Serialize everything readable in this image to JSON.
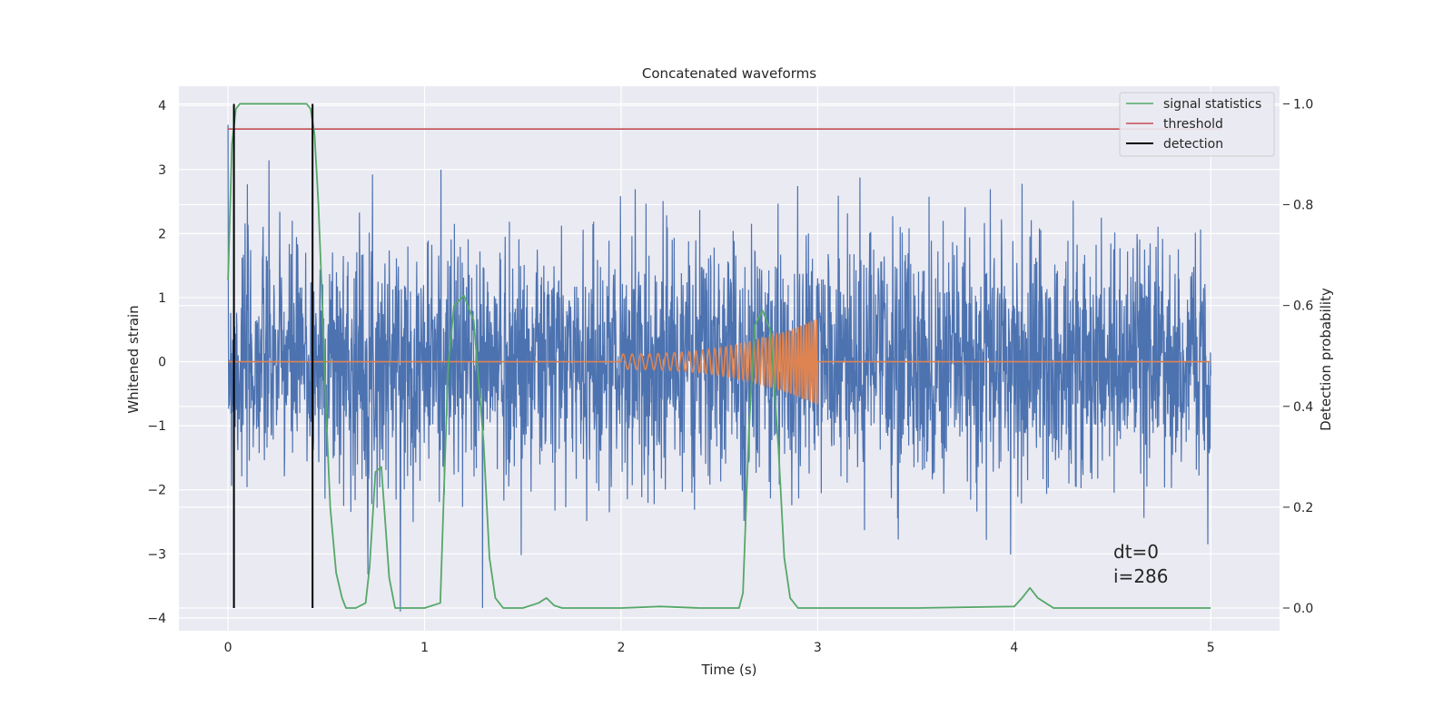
{
  "chart_data": {
    "type": "line",
    "title": "Concatenated waveforms",
    "xlabel": "Time (s)",
    "ylabel": "Whitened strain",
    "y2label": "Detection probability",
    "xlim": [
      -0.25,
      5.35
    ],
    "ylim": [
      -4.2,
      4.3
    ],
    "y2lim": [
      -0.045,
      1.035
    ],
    "xticks": [
      0,
      1,
      2,
      3,
      4,
      5
    ],
    "yticks": [
      -4,
      -3,
      -2,
      -1,
      0,
      1,
      2,
      3,
      4
    ],
    "y2ticks": [
      0.0,
      0.2,
      0.4,
      0.6,
      0.8,
      1.0
    ],
    "grid": true,
    "legend_position": "top-right",
    "annotation": [
      "dt=0",
      "i=286"
    ],
    "colors": {
      "background": "#eaeaf2",
      "noise": "#4c72b0",
      "injection": "#dd8452",
      "statistic": "#55a868",
      "threshold": "#c44e52",
      "detection": "#000000"
    },
    "series": [
      {
        "name": "signal statistics",
        "axis": "right",
        "x": [
          0,
          0.02,
          0.04,
          0.06,
          0.08,
          0.1,
          0.2,
          0.3,
          0.4,
          0.42,
          0.44,
          0.46,
          0.48,
          0.5,
          0.52,
          0.55,
          0.58,
          0.6,
          0.65,
          0.7,
          0.72,
          0.75,
          0.78,
          0.8,
          0.82,
          0.85,
          0.88,
          0.9,
          1.0,
          1.08,
          1.1,
          1.12,
          1.15,
          1.2,
          1.25,
          1.3,
          1.33,
          1.36,
          1.4,
          1.5,
          1.58,
          1.62,
          1.66,
          1.7,
          1.8,
          2.0,
          2.2,
          2.4,
          2.6,
          2.62,
          2.65,
          2.68,
          2.72,
          2.76,
          2.8,
          2.83,
          2.86,
          2.9,
          3.0,
          3.5,
          4.0,
          4.04,
          4.08,
          4.12,
          4.2,
          4.5,
          5.0
        ],
        "values": [
          0.65,
          0.92,
          0.99,
          1.0,
          1.0,
          1.0,
          1.0,
          1.0,
          1.0,
          0.99,
          0.94,
          0.8,
          0.6,
          0.38,
          0.2,
          0.07,
          0.02,
          0.0,
          0.0,
          0.01,
          0.08,
          0.27,
          0.28,
          0.17,
          0.06,
          0.0,
          0.0,
          0.0,
          0.0,
          0.01,
          0.25,
          0.48,
          0.6,
          0.62,
          0.57,
          0.33,
          0.1,
          0.02,
          0.0,
          0.0,
          0.01,
          0.02,
          0.005,
          0.0,
          0.0,
          0.0,
          0.003,
          0.0,
          0.0,
          0.03,
          0.35,
          0.56,
          0.59,
          0.55,
          0.32,
          0.1,
          0.02,
          0.0,
          0.0,
          0.0,
          0.003,
          0.02,
          0.04,
          0.02,
          0.0,
          0.0,
          0.0
        ]
      },
      {
        "name": "threshold",
        "axis": "right",
        "x": [
          0,
          5.05
        ],
        "values": [
          0.95,
          0.95
        ]
      },
      {
        "name": "detection",
        "axis": "right",
        "segments": [
          {
            "x": 0.03,
            "y": [
              0.0,
              1.0
            ]
          },
          {
            "x": 0.43,
            "y": [
              0.0,
              1.0
            ]
          }
        ]
      }
    ]
  }
}
